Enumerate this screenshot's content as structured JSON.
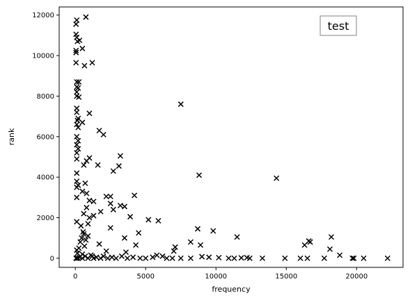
{
  "chart_data": {
    "type": "scatter",
    "title": "",
    "legend_text": "test",
    "legend_placement": "top-right",
    "xlabel": "frequency",
    "ylabel": "rank",
    "xlim": [
      -1150,
      23300
    ],
    "ylim": [
      -450,
      12400
    ],
    "xticks": [
      0,
      5000,
      10000,
      15000,
      20000
    ],
    "yticks": [
      0,
      2000,
      4000,
      6000,
      8000,
      10000,
      12000
    ],
    "grid": false,
    "marker": "x",
    "marker_color": "#000000",
    "series": [
      {
        "points": [
          [
            750,
            11900
          ],
          [
            100,
            11750
          ],
          [
            50,
            11550
          ],
          [
            50,
            11050
          ],
          [
            100,
            10900
          ],
          [
            150,
            10700
          ],
          [
            300,
            10750
          ],
          [
            500,
            10350
          ],
          [
            50,
            10250
          ],
          [
            50,
            10150
          ],
          [
            50,
            9650
          ],
          [
            650,
            9500
          ],
          [
            1200,
            9650
          ],
          [
            100,
            8700
          ],
          [
            250,
            8700
          ],
          [
            100,
            8450
          ],
          [
            200,
            8400
          ],
          [
            100,
            8200
          ],
          [
            100,
            8000
          ],
          [
            250,
            7950
          ],
          [
            7500,
            7600
          ],
          [
            100,
            7400
          ],
          [
            100,
            7200
          ],
          [
            1000,
            7150
          ],
          [
            200,
            6900
          ],
          [
            150,
            6800
          ],
          [
            500,
            6700
          ],
          [
            100,
            6600
          ],
          [
            200,
            6450
          ],
          [
            1700,
            6300
          ],
          [
            2000,
            6100
          ],
          [
            100,
            6000
          ],
          [
            200,
            5800
          ],
          [
            100,
            5600
          ],
          [
            200,
            5400
          ],
          [
            100,
            5200
          ],
          [
            3200,
            5050
          ],
          [
            1000,
            4950
          ],
          [
            100,
            4900
          ],
          [
            800,
            4800
          ],
          [
            600,
            4600
          ],
          [
            1600,
            4600
          ],
          [
            3100,
            4550
          ],
          [
            2700,
            4300
          ],
          [
            100,
            4200
          ],
          [
            8800,
            4100
          ],
          [
            14300,
            3950
          ],
          [
            100,
            3800
          ],
          [
            700,
            3700
          ],
          [
            200,
            3600
          ],
          [
            100,
            3500
          ],
          [
            500,
            3300
          ],
          [
            800,
            3200
          ],
          [
            4200,
            3100
          ],
          [
            2200,
            3050
          ],
          [
            2500,
            3050
          ],
          [
            100,
            3000
          ],
          [
            1000,
            2850
          ],
          [
            1300,
            2800
          ],
          [
            2500,
            2700
          ],
          [
            3200,
            2600
          ],
          [
            3500,
            2550
          ],
          [
            800,
            2500
          ],
          [
            1800,
            2300
          ],
          [
            2700,
            2400
          ],
          [
            600,
            2200
          ],
          [
            1300,
            2100
          ],
          [
            3900,
            2050
          ],
          [
            1000,
            2000
          ],
          [
            5200,
            1900
          ],
          [
            5900,
            1850
          ],
          [
            100,
            1800
          ],
          [
            900,
            1700
          ],
          [
            400,
            1600
          ],
          [
            2500,
            1500
          ],
          [
            8700,
            1450
          ],
          [
            9800,
            1350
          ],
          [
            4500,
            1250
          ],
          [
            11500,
            1050
          ],
          [
            18200,
            1050
          ],
          [
            600,
            1200
          ],
          [
            900,
            1100
          ],
          [
            3500,
            1000
          ],
          [
            16600,
            850
          ],
          [
            16700,
            800
          ],
          [
            8200,
            800
          ],
          [
            8900,
            650
          ],
          [
            16300,
            650
          ],
          [
            1700,
            700
          ],
          [
            4300,
            650
          ],
          [
            7100,
            550
          ],
          [
            18100,
            450
          ],
          [
            100,
            400
          ],
          [
            2200,
            350
          ],
          [
            7000,
            350
          ],
          [
            3600,
            300
          ],
          [
            18800,
            150
          ],
          [
            500,
            200
          ],
          [
            5800,
            150
          ],
          [
            6200,
            100
          ],
          [
            1200,
            100
          ],
          [
            9000,
            80
          ],
          [
            9500,
            50
          ],
          [
            10200,
            30
          ],
          [
            11800,
            20
          ],
          [
            12200,
            30
          ],
          [
            12400,
            0
          ],
          [
            13300,
            0
          ],
          [
            14900,
            0
          ],
          [
            16000,
            0
          ],
          [
            16500,
            0
          ],
          [
            17700,
            0
          ],
          [
            19700,
            0
          ],
          [
            19800,
            0
          ],
          [
            20500,
            0
          ],
          [
            22200,
            0
          ],
          [
            10900,
            0
          ],
          [
            11300,
            0
          ],
          [
            8200,
            0
          ],
          [
            7500,
            0
          ],
          [
            6900,
            0
          ],
          [
            6500,
            0
          ],
          [
            5500,
            50
          ],
          [
            5000,
            0
          ],
          [
            4600,
            0
          ],
          [
            4100,
            50
          ],
          [
            3700,
            0
          ],
          [
            3300,
            100
          ],
          [
            2900,
            0
          ],
          [
            2600,
            50
          ],
          [
            2300,
            0
          ],
          [
            2000,
            100
          ],
          [
            1800,
            0
          ],
          [
            1500,
            50
          ],
          [
            1300,
            0
          ],
          [
            1100,
            150
          ],
          [
            900,
            0
          ],
          [
            700,
            100
          ],
          [
            500,
            0
          ],
          [
            300,
            50
          ],
          [
            200,
            0
          ],
          [
            100,
            0
          ],
          [
            50,
            0
          ],
          [
            150,
            250
          ],
          [
            250,
            500
          ],
          [
            350,
            800
          ],
          [
            450,
            1000
          ],
          [
            550,
            1300
          ],
          [
            650,
            600
          ],
          [
            750,
            900
          ]
        ]
      }
    ]
  }
}
